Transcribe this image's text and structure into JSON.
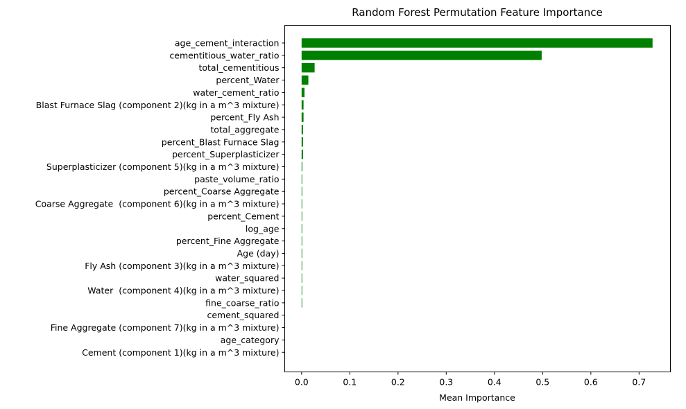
{
  "chart_data": {
    "type": "bar",
    "orientation": "horizontal",
    "title": "Random Forest Permutation Feature Importance",
    "xlabel": "Mean Importance",
    "ylabel": "",
    "xlim": [
      -0.035,
      0.765
    ],
    "xticks": [
      0.0,
      0.1,
      0.2,
      0.3,
      0.4,
      0.5,
      0.6,
      0.7
    ],
    "xtick_labels": [
      "0.0",
      "0.1",
      "0.2",
      "0.3",
      "0.4",
      "0.5",
      "0.6",
      "0.7"
    ],
    "grid": false,
    "bar_color": "#008000",
    "categories": [
      "age_cement_interaction",
      "cementitious_water_ratio",
      "total_cementitious",
      "percent_Water",
      "water_cement_ratio",
      "Blast Furnace Slag (component 2)(kg in a m^3 mixture)",
      "percent_Fly Ash",
      "total_aggregate",
      "percent_Blast Furnace Slag",
      "percent_Superplasticizer",
      "Superplasticizer (component 5)(kg in a m^3 mixture)",
      "paste_volume_ratio",
      "percent_Coarse Aggregate",
      "Coarse Aggregate  (component 6)(kg in a m^3 mixture)",
      "percent_Cement",
      "log_age",
      "percent_Fine Aggregate",
      "Age (day)",
      "Fly Ash (component 3)(kg in a m^3 mixture)",
      "water_squared",
      "Water  (component 4)(kg in a m^3 mixture)",
      "fine_coarse_ratio",
      "cement_squared",
      "Fine Aggregate (component 7)(kg in a m^3 mixture)",
      "age_category",
      "Cement (component 1)(kg in a m^3 mixture)"
    ],
    "values": [
      0.728,
      0.498,
      0.027,
      0.014,
      0.006,
      0.004,
      0.004,
      0.003,
      0.003,
      0.003,
      0.0015,
      0.0012,
      0.0012,
      0.0012,
      0.001,
      0.001,
      0.001,
      0.001,
      0.001,
      0.001,
      0.001,
      0.001,
      0.0,
      0.0,
      0.0,
      0.0
    ]
  }
}
